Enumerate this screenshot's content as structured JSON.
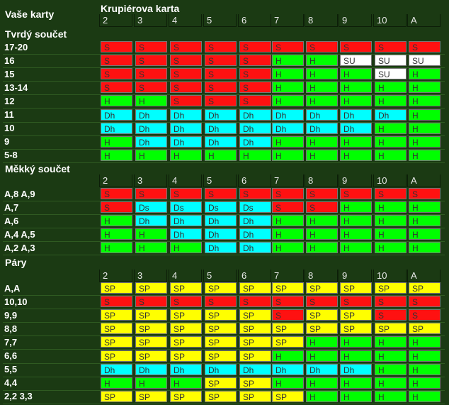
{
  "header": {
    "your_cards": "Vaše karty",
    "dealer_card": "Krupiérova karta"
  },
  "legend_colors": {
    "S": "#ff1111",
    "H": "#00ff00",
    "Dh": "#00ffff",
    "Ds": "#00ffff",
    "SP": "#ffff00",
    "SU": "#ffffff"
  },
  "dealer_cards": [
    "2",
    "3",
    "4",
    "5",
    "6",
    "7",
    "8",
    "9",
    "10",
    "A"
  ],
  "sections": [
    {
      "title": "Tvrdý součet",
      "show_dealer_row": false,
      "rows": [
        {
          "label": "17-20",
          "cells": [
            "S",
            "S",
            "S",
            "S",
            "S",
            "S",
            "S",
            "S",
            "S",
            "S"
          ]
        },
        {
          "label": "16",
          "cells": [
            "S",
            "S",
            "S",
            "S",
            "S",
            "H",
            "H",
            "SU",
            "SU",
            "SU"
          ]
        },
        {
          "label": "15",
          "cells": [
            "S",
            "S",
            "S",
            "S",
            "S",
            "H",
            "H",
            "H",
            "SU",
            "H"
          ]
        },
        {
          "label": "13-14",
          "cells": [
            "S",
            "S",
            "S",
            "S",
            "S",
            "H",
            "H",
            "H",
            "H",
            "H"
          ]
        },
        {
          "label": "12",
          "cells": [
            "H",
            "H",
            "S",
            "S",
            "S",
            "H",
            "H",
            "H",
            "H",
            "H"
          ]
        },
        {
          "label": "11",
          "cells": [
            "Dh",
            "Dh",
            "Dh",
            "Dh",
            "Dh",
            "Dh",
            "Dh",
            "Dh",
            "Dh",
            "H"
          ]
        },
        {
          "label": "10",
          "cells": [
            "Dh",
            "Dh",
            "Dh",
            "Dh",
            "Dh",
            "Dh",
            "Dh",
            "Dh",
            "H",
            "H"
          ]
        },
        {
          "label": "9",
          "cells": [
            "H",
            "Dh",
            "Dh",
            "Dh",
            "Dh",
            "H",
            "H",
            "H",
            "H",
            "H"
          ]
        },
        {
          "label": "5-8",
          "cells": [
            "H",
            "H",
            "H",
            "H",
            "H",
            "H",
            "H",
            "H",
            "H",
            "H"
          ]
        }
      ]
    },
    {
      "title": "Měkký součet",
      "show_dealer_row": true,
      "rows": [
        {
          "label": "A,8 A,9",
          "cells": [
            "S",
            "S",
            "S",
            "S",
            "S",
            "S",
            "S",
            "S",
            "S",
            "S"
          ]
        },
        {
          "label": "A,7",
          "cells": [
            "S",
            "Ds",
            "Ds",
            "Ds",
            "Ds",
            "S",
            "S",
            "H",
            "H",
            "H"
          ]
        },
        {
          "label": "A,6",
          "cells": [
            "H",
            "Dh",
            "Dh",
            "Dh",
            "Dh",
            "H",
            "H",
            "H",
            "H",
            "H"
          ]
        },
        {
          "label": "A,4 A,5",
          "cells": [
            "H",
            "H",
            "Dh",
            "Dh",
            "Dh",
            "H",
            "H",
            "H",
            "H",
            "H"
          ]
        },
        {
          "label": "A,2 A,3",
          "cells": [
            "H",
            "H",
            "H",
            "Dh",
            "Dh",
            "H",
            "H",
            "H",
            "H",
            "H"
          ]
        }
      ]
    },
    {
      "title": "Páry",
      "show_dealer_row": true,
      "rows": [
        {
          "label": "A,A",
          "cells": [
            "SP",
            "SP",
            "SP",
            "SP",
            "SP",
            "SP",
            "SP",
            "SP",
            "SP",
            "SP"
          ]
        },
        {
          "label": "10,10",
          "cells": [
            "S",
            "S",
            "S",
            "S",
            "S",
            "S",
            "S",
            "S",
            "S",
            "S"
          ]
        },
        {
          "label": "9,9",
          "cells": [
            "SP",
            "SP",
            "SP",
            "SP",
            "SP",
            "S",
            "SP",
            "SP",
            "S",
            "S"
          ]
        },
        {
          "label": "8,8",
          "cells": [
            "SP",
            "SP",
            "SP",
            "SP",
            "SP",
            "SP",
            "SP",
            "SP",
            "SP",
            "SP"
          ]
        },
        {
          "label": "7,7",
          "cells": [
            "SP",
            "SP",
            "SP",
            "SP",
            "SP",
            "SP",
            "H",
            "H",
            "H",
            "H"
          ]
        },
        {
          "label": "6,6",
          "cells": [
            "SP",
            "SP",
            "SP",
            "SP",
            "SP",
            "H",
            "H",
            "H",
            "H",
            "H"
          ]
        },
        {
          "label": "5,5",
          "cells": [
            "Dh",
            "Dh",
            "Dh",
            "Dh",
            "Dh",
            "Dh",
            "Dh",
            "Dh",
            "H",
            "H"
          ]
        },
        {
          "label": "4,4",
          "cells": [
            "H",
            "H",
            "H",
            "SP",
            "SP",
            "H",
            "H",
            "H",
            "H",
            "H"
          ]
        },
        {
          "label": "2,2 3,3",
          "cells": [
            "SP",
            "SP",
            "SP",
            "SP",
            "SP",
            "SP",
            "H",
            "H",
            "H",
            "H"
          ]
        }
      ]
    }
  ]
}
